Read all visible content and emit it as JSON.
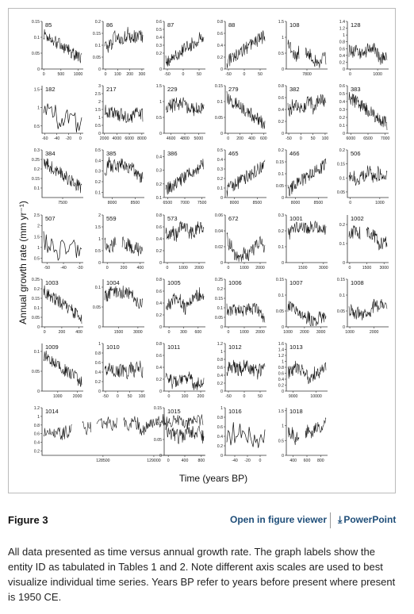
{
  "figure": {
    "ylabel": "Annual growth rate (mm yr⁻¹)",
    "xlabel": "Time (years BP)"
  },
  "chart_data": [
    {
      "type": "line",
      "id": "85",
      "yticks": [
        "0",
        "0.05",
        "0.1",
        "0.15"
      ],
      "xticks": [
        "0",
        "500",
        "1000"
      ],
      "ylim": [
        0,
        0.15
      ],
      "xlim": [
        -50,
        1150
      ]
    },
    {
      "type": "line",
      "id": "86",
      "yticks": [
        "0",
        "0.05",
        "0.1",
        "0.15",
        "0.2"
      ],
      "xticks": [
        "0",
        "100",
        "200",
        "300"
      ],
      "ylim": [
        0,
        0.2
      ],
      "xlim": [
        -20,
        320
      ]
    },
    {
      "type": "line",
      "id": "87",
      "yticks": [
        "0",
        "0.2",
        "0.3",
        "0.4",
        "0.5",
        "0.6"
      ],
      "xticks": [
        "-50",
        "0",
        "50"
      ],
      "ylim": [
        0,
        0.6
      ],
      "xlim": [
        -60,
        70
      ]
    },
    {
      "type": "line",
      "id": "88",
      "yticks": [
        "0",
        "0.2",
        "0.4",
        "0.6",
        "0.8"
      ],
      "xticks": [
        "-50",
        "0",
        "50"
      ],
      "ylim": [
        0,
        0.8
      ],
      "xlim": [
        -60,
        70
      ]
    },
    {
      "type": "line",
      "id": "108",
      "yticks": [
        "0",
        "0.5",
        "1",
        "1.5"
      ],
      "xticks": [
        "7800"
      ],
      "ylim": [
        0,
        1.5
      ],
      "xlim": [
        7720,
        7880
      ]
    },
    {
      "type": "line",
      "id": "128",
      "yticks": [
        "0",
        "0.2",
        "0.4",
        "0.6",
        "0.8",
        "1",
        "1.2",
        "1.4"
      ],
      "xticks": [
        "0",
        "1000"
      ],
      "ylim": [
        0,
        1.4
      ],
      "xlim": [
        -100,
        1400
      ]
    },
    {
      "type": "line",
      "id": "182",
      "yticks": [
        "0.5",
        "1",
        "1.5"
      ],
      "xticks": [
        "-60",
        "-40",
        "-20",
        "0"
      ],
      "ylim": [
        0.3,
        1.6
      ],
      "xlim": [
        -65,
        5
      ]
    },
    {
      "type": "line",
      "id": "217",
      "yticks": [
        "0",
        "0.5",
        "1",
        "1.5",
        "2",
        "2.5",
        "3"
      ],
      "xticks": [
        "2000",
        "4000",
        "6000",
        "8000"
      ],
      "ylim": [
        0,
        3
      ],
      "xlim": [
        1800,
        8400
      ]
    },
    {
      "type": "line",
      "id": "229",
      "yticks": [
        "0",
        "0.5",
        "1",
        "1.5"
      ],
      "xticks": [
        "4600",
        "4800",
        "5000"
      ],
      "ylim": [
        0,
        1.5
      ],
      "xlim": [
        4500,
        5100
      ]
    },
    {
      "type": "line",
      "id": "279",
      "yticks": [
        "0",
        "0.05",
        "0.1",
        "0.15"
      ],
      "xticks": [
        "0",
        "200",
        "400",
        "600"
      ],
      "ylim": [
        0,
        0.15
      ],
      "xlim": [
        -50,
        650
      ]
    },
    {
      "type": "line",
      "id": "382",
      "yticks": [
        "0",
        "0.2",
        "0.4",
        "0.6",
        "0.8"
      ],
      "xticks": [
        "-50",
        "0",
        "50",
        "100"
      ],
      "ylim": [
        0,
        0.8
      ],
      "xlim": [
        -60,
        110
      ]
    },
    {
      "type": "line",
      "id": "383",
      "yticks": [
        "0",
        "0.1",
        "0.2",
        "0.3",
        "0.4",
        "0.5",
        "0.6"
      ],
      "xticks": [
        "6000",
        "6500",
        "7000"
      ],
      "ylim": [
        0,
        0.6
      ],
      "xlim": [
        5900,
        7100
      ]
    },
    {
      "type": "line",
      "id": "384",
      "yticks": [
        "0.1",
        "0.15",
        "0.2",
        "0.25",
        "0.3"
      ],
      "xticks": [
        "7500"
      ],
      "ylim": [
        0.05,
        0.3
      ],
      "xlim": [
        7200,
        7800
      ]
    },
    {
      "type": "line",
      "id": "385",
      "yticks": [
        "0.1",
        "0.2",
        "0.3",
        "0.4",
        "0.5"
      ],
      "xticks": [
        "8000",
        "8500"
      ],
      "ylim": [
        0.05,
        0.5
      ],
      "xlim": [
        7800,
        8700
      ]
    },
    {
      "type": "line",
      "id": "386",
      "yticks": [
        "0.1",
        "0.2",
        "0.3",
        "0.4"
      ],
      "xticks": [
        "6500",
        "7000",
        "7500"
      ],
      "ylim": [
        0.1,
        0.45
      ],
      "xlim": [
        6400,
        7600
      ]
    },
    {
      "type": "line",
      "id": "465",
      "yticks": [
        "0",
        "0.1",
        "0.2",
        "0.3",
        "0.4",
        "0.5"
      ],
      "xticks": [
        "8000",
        "8500"
      ],
      "ylim": [
        0,
        0.5
      ],
      "xlim": [
        7800,
        8700
      ]
    },
    {
      "type": "line",
      "id": "466",
      "yticks": [
        "0",
        "0.05",
        "0.1",
        "0.15",
        "0.2"
      ],
      "xticks": [
        "8000",
        "8500"
      ],
      "ylim": [
        0,
        0.2
      ],
      "xlim": [
        7800,
        8700
      ]
    },
    {
      "type": "line",
      "id": "506",
      "yticks": [
        "0.05",
        "0.1",
        "0.15",
        "0.2"
      ],
      "xticks": [
        "0",
        "1000"
      ],
      "ylim": [
        0.03,
        0.2
      ],
      "xlim": [
        -100,
        1300
      ]
    },
    {
      "type": "line",
      "id": "507",
      "yticks": [
        "0.5",
        "1",
        "1.5",
        "2",
        "2.5"
      ],
      "xticks": [
        "-50",
        "-40",
        "-30"
      ],
      "ylim": [
        0.3,
        2.5
      ],
      "xlim": [
        -53,
        -28
      ]
    },
    {
      "type": "line",
      "id": "559",
      "yticks": [
        "0",
        "0.5",
        "1",
        "1.5",
        "2"
      ],
      "xticks": [
        "0",
        "200",
        "400"
      ],
      "ylim": [
        0,
        2
      ],
      "xlim": [
        -50,
        450
      ]
    },
    {
      "type": "line",
      "id": "573",
      "yticks": [
        "0",
        "0.2",
        "0.4",
        "0.6",
        "0.8"
      ],
      "xticks": [
        "0",
        "1000",
        "2000"
      ],
      "ylim": [
        0,
        0.8
      ],
      "xlim": [
        -200,
        2400
      ]
    },
    {
      "type": "line",
      "id": "672",
      "yticks": [
        "0",
        "0.02",
        "0.04",
        "0.06"
      ],
      "xticks": [
        "0",
        "1000",
        "2000"
      ],
      "ylim": [
        0,
        0.06
      ],
      "xlim": [
        -200,
        2400
      ]
    },
    {
      "type": "line",
      "id": "1001",
      "yticks": [
        "0",
        "0.1",
        "0.2",
        "0.3"
      ],
      "xticks": [
        "1500",
        "3000"
      ],
      "ylim": [
        0,
        0.3
      ],
      "xlim": [
        300,
        3300
      ]
    },
    {
      "type": "line",
      "id": "1002",
      "yticks": [
        "0",
        "0.1",
        "0.2"
      ],
      "xticks": [
        "0",
        "1500",
        "3000"
      ],
      "ylim": [
        0,
        0.25
      ],
      "xlim": [
        -200,
        3400
      ]
    },
    {
      "type": "line",
      "id": "1003",
      "yticks": [
        "0",
        "0.05",
        "0.1",
        "0.15",
        "0.2",
        "0.25"
      ],
      "xticks": [
        "0",
        "200",
        "400"
      ],
      "ylim": [
        0,
        0.25
      ],
      "xlim": [
        -30,
        450
      ]
    },
    {
      "type": "line",
      "id": "1004",
      "yticks": [
        "0",
        "0.05",
        "0.1"
      ],
      "xticks": [
        "1500",
        "3000"
      ],
      "ylim": [
        0,
        0.12
      ],
      "xlim": [
        300,
        3500
      ]
    },
    {
      "type": "line",
      "id": "1005",
      "yticks": [
        "0",
        "0.2",
        "0.4",
        "0.6",
        "0.8"
      ],
      "xticks": [
        "0",
        "300",
        "600"
      ],
      "ylim": [
        0,
        0.8
      ],
      "xlim": [
        -100,
        750
      ]
    },
    {
      "type": "line",
      "id": "1006",
      "yticks": [
        "0",
        "0.05",
        "0.1",
        "0.15",
        "0.2",
        "0.25"
      ],
      "xticks": [
        "0",
        "1000",
        "2000"
      ],
      "ylim": [
        0,
        0.25
      ],
      "xlim": [
        -200,
        2400
      ]
    },
    {
      "type": "line",
      "id": "1007",
      "yticks": [
        "0",
        "0.05",
        "0.1",
        "0.15"
      ],
      "xticks": [
        "1000",
        "2000",
        "3000"
      ],
      "ylim": [
        0,
        0.15
      ],
      "xlim": [
        900,
        3400
      ]
    },
    {
      "type": "line",
      "id": "1008",
      "yticks": [
        "0",
        "0.05",
        "0.1",
        "0.15"
      ],
      "xticks": [
        "1000",
        "2000"
      ],
      "ylim": [
        0,
        0.15
      ],
      "xlim": [
        900,
        2600
      ]
    },
    {
      "type": "line",
      "id": "1009",
      "yticks": [
        "0",
        "0.05",
        "0.1"
      ],
      "xticks": [
        "1000",
        "2000"
      ],
      "ylim": [
        0,
        0.12
      ],
      "xlim": [
        200,
        2300
      ]
    },
    {
      "type": "line",
      "id": "1010",
      "yticks": [
        "0",
        "0.2",
        "0.4",
        "0.6",
        "0.8",
        "1"
      ],
      "xticks": [
        "-50",
        "0",
        "50",
        "100"
      ],
      "ylim": [
        0,
        1
      ],
      "xlim": [
        -60,
        110
      ]
    },
    {
      "type": "line",
      "id": "1011",
      "yticks": [
        "0",
        "0.2",
        "0.4",
        "0.6",
        "0.8"
      ],
      "xticks": [
        "0",
        "100",
        "200"
      ],
      "ylim": [
        0,
        0.8
      ],
      "xlim": [
        -30,
        230
      ]
    },
    {
      "type": "line",
      "id": "1012",
      "yticks": [
        "0",
        "0.2",
        "0.4",
        "0.6",
        "0.8",
        "1",
        "1.2"
      ],
      "xticks": [
        "-50",
        "0",
        "50"
      ],
      "ylim": [
        0,
        1.2
      ],
      "xlim": [
        -60,
        70
      ]
    },
    {
      "type": "line",
      "id": "1013",
      "yticks": [
        "0",
        "0.2",
        "0.4",
        "0.6",
        "0.8",
        "1",
        "1.2",
        "1.4",
        "1.6"
      ],
      "xticks": [
        "9000",
        "10000"
      ],
      "ylim": [
        0,
        1.6
      ],
      "xlim": [
        8700,
        10500
      ]
    },
    {
      "type": "line",
      "id": "1014",
      "yticks": [
        "0.2",
        "0.4",
        "0.6",
        "0.8",
        "1",
        "1.2"
      ],
      "xticks": [
        "128500",
        "129000"
      ],
      "ylim": [
        0.1,
        1.2
      ],
      "xlim": [
        127900,
        129500
      ]
    },
    {
      "type": "line",
      "id": "1015",
      "yticks": [
        "0",
        "0.05",
        "0.1",
        "0.15"
      ],
      "xticks": [
        "0",
        "400",
        "800"
      ],
      "ylim": [
        0,
        0.15
      ],
      "xlim": [
        -100,
        900
      ]
    },
    {
      "type": "line",
      "id": "1016",
      "yticks": [
        "0",
        "0.2",
        "0.4",
        "0.6",
        "0.8",
        "1"
      ],
      "xticks": [
        "-40",
        "-20",
        "0"
      ],
      "ylim": [
        0,
        1
      ],
      "xlim": [
        -55,
        10
      ]
    },
    {
      "type": "line",
      "id": "1018",
      "yticks": [
        "0",
        "0.5",
        "1",
        "1.5"
      ],
      "xticks": [
        "400",
        "600",
        "800"
      ],
      "ylim": [
        0,
        1.6
      ],
      "xlim": [
        300,
        900
      ]
    }
  ],
  "caption_bar": {
    "figure_label": "Figure 3",
    "open_viewer": "Open in figure viewer",
    "powerpoint": "PowerPoint"
  },
  "caption": "All data presented as time versus annual growth rate. The graph labels show the entity ID as tabulated in Tables 1 and 2. Note different axis scales are used to best visualize individual time series. Years BP refer to years before present where present is 1950 CE."
}
